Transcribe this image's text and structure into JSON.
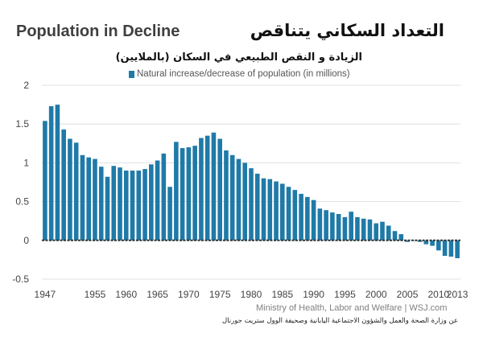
{
  "header": {
    "title_en": "Population in Decline",
    "title_ar": "التعداد السكاني يتناقص",
    "subtitle_ar": "الزيادة و النقص الطبيعي في السكان (بالملايين)"
  },
  "footer": {
    "source_en": "Ministry of Health, Labor and Welfare  |  WSJ.com",
    "source_ar": "عن وزارة الصحة والعمل والشؤون الاجتماعية اليابانية وصحيفة الوول ستريت جورنال"
  },
  "colors": {
    "bar": "#1f7aa8",
    "axis": "#333333"
  },
  "chart_data": {
    "type": "bar",
    "title": "Population in Decline",
    "legend": "Natural increase/decrease of population (in millions)",
    "xlabel": "",
    "ylabel": "",
    "ylim": [
      -0.5,
      2
    ],
    "yticks": [
      -0.5,
      0,
      0.5,
      1,
      1.5,
      2
    ],
    "ytick_labels": [
      "-0.5",
      "0",
      "0.5",
      "1",
      "1.5",
      "2"
    ],
    "xtick_labels": [
      "1947",
      "1955",
      "1960",
      "1965",
      "1970",
      "1975",
      "1980",
      "1985",
      "1990",
      "1995",
      "2000",
      "2005",
      "2010",
      "2013"
    ],
    "categories": [
      1947,
      1948,
      1949,
      1950,
      1951,
      1952,
      1953,
      1954,
      1955,
      1956,
      1957,
      1958,
      1959,
      1960,
      1961,
      1962,
      1963,
      1964,
      1965,
      1966,
      1967,
      1968,
      1969,
      1970,
      1971,
      1972,
      1973,
      1974,
      1975,
      1976,
      1977,
      1978,
      1979,
      1980,
      1981,
      1982,
      1983,
      1984,
      1985,
      1986,
      1987,
      1988,
      1989,
      1990,
      1991,
      1992,
      1993,
      1994,
      1995,
      1996,
      1997,
      1998,
      1999,
      2000,
      2001,
      2002,
      2003,
      2004,
      2005,
      2006,
      2007,
      2008,
      2009,
      2010,
      2011,
      2012,
      2013
    ],
    "values": [
      1.54,
      1.73,
      1.75,
      1.43,
      1.31,
      1.26,
      1.1,
      1.07,
      1.05,
      0.95,
      0.82,
      0.96,
      0.94,
      0.9,
      0.9,
      0.9,
      0.92,
      0.98,
      1.03,
      1.12,
      0.69,
      1.27,
      1.19,
      1.2,
      1.22,
      1.32,
      1.35,
      1.39,
      1.31,
      1.16,
      1.1,
      1.05,
      1.0,
      0.93,
      0.86,
      0.8,
      0.79,
      0.76,
      0.73,
      0.69,
      0.65,
      0.6,
      0.56,
      0.52,
      0.41,
      0.39,
      0.36,
      0.34,
      0.3,
      0.37,
      0.3,
      0.28,
      0.27,
      0.22,
      0.24,
      0.19,
      0.12,
      0.08,
      -0.02,
      0.0,
      -0.02,
      -0.05,
      -0.07,
      -0.13,
      -0.2,
      -0.21,
      -0.23
    ]
  }
}
